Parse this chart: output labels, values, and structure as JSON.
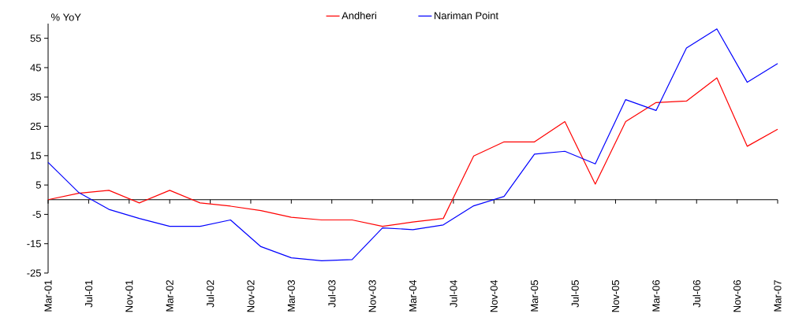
{
  "chart_data": {
    "type": "line",
    "ylabel": "% YoY",
    "x": [
      "2001-03",
      "2001-06",
      "2001-09",
      "2001-12",
      "2002-03",
      "2002-06",
      "2002-09",
      "2002-12",
      "2003-03",
      "2003-06",
      "2003-09",
      "2003-12",
      "2004-03",
      "2004-06",
      "2004-09",
      "2004-12",
      "2005-03",
      "2005-06",
      "2005-09",
      "2005-12",
      "2006-03",
      "2006-06",
      "2006-09",
      "2006-12",
      "2007-03"
    ],
    "series": [
      {
        "name": "Andheri",
        "color": "#ff0000",
        "values": [
          0,
          2.2,
          3.2,
          -1.1,
          3.2,
          -1.1,
          -2.2,
          -3.7,
          -6,
          -6.9,
          -6.9,
          -9.1,
          -7.6,
          -6.4,
          14.9,
          19.7,
          19.7,
          26.6,
          5.3,
          26.6,
          33.1,
          33.6,
          41.5,
          18.2,
          24
        ]
      },
      {
        "name": "Nariman Point",
        "color": "#0000ff",
        "values": [
          12.7,
          2.5,
          -3.3,
          -6.4,
          -9.1,
          -9.1,
          -6.9,
          -16,
          -19.8,
          -20.8,
          -20.4,
          -9.6,
          -10.2,
          -8.6,
          -2.1,
          1.1,
          15.5,
          16.5,
          12.2,
          34.1,
          30.4,
          51.7,
          58.2,
          40,
          46.4
        ]
      }
    ],
    "xlim": [
      "2001-03",
      "2007-03"
    ],
    "xticks": [
      {
        "value": "2001-03",
        "label": "Mar-01"
      },
      {
        "value": "2001-07",
        "label": "Jul-01"
      },
      {
        "value": "2001-11",
        "label": "Nov-01"
      },
      {
        "value": "2002-03",
        "label": "Mar-02"
      },
      {
        "value": "2002-07",
        "label": "Jul-02"
      },
      {
        "value": "2002-11",
        "label": "Nov-02"
      },
      {
        "value": "2003-03",
        "label": "Mar-03"
      },
      {
        "value": "2003-07",
        "label": "Jul-03"
      },
      {
        "value": "2003-11",
        "label": "Nov-03"
      },
      {
        "value": "2004-03",
        "label": "Mar-04"
      },
      {
        "value": "2004-07",
        "label": "Jul-04"
      },
      {
        "value": "2004-11",
        "label": "Nov-04"
      },
      {
        "value": "2005-03",
        "label": "Mar-05"
      },
      {
        "value": "2005-07",
        "label": "Jul-05"
      },
      {
        "value": "2005-11",
        "label": "Nov-05"
      },
      {
        "value": "2006-03",
        "label": "Mar-06"
      },
      {
        "value": "2006-07",
        "label": "Jul-06"
      },
      {
        "value": "2006-11",
        "label": "Nov-06"
      },
      {
        "value": "2007-03",
        "label": "Mar-07"
      }
    ],
    "ylim": [
      -25,
      60
    ],
    "yticks": [
      -25,
      -15,
      -5,
      5,
      15,
      25,
      35,
      45,
      55
    ],
    "grid": false,
    "legend": "top",
    "marker": "none",
    "line_style": "solid"
  }
}
